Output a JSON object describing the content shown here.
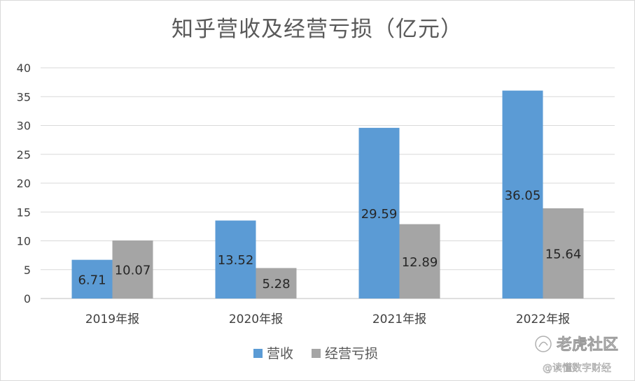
{
  "chart_data": {
    "type": "bar",
    "title": "知乎营收及经营亏损（亿元）",
    "categories": [
      "2019年报",
      "2020年报",
      "2021年报",
      "2022年报"
    ],
    "series": [
      {
        "name": "营收",
        "color": "#5b9bd5",
        "values": [
          6.71,
          13.52,
          29.59,
          36.05
        ]
      },
      {
        "name": "经营亏损",
        "color": "#a5a5a5",
        "values": [
          10.07,
          5.28,
          12.89,
          15.64
        ]
      }
    ],
    "ylim": [
      0,
      40
    ],
    "yticks": [
      0,
      5,
      10,
      15,
      20,
      25,
      30,
      35,
      40
    ],
    "grid": true,
    "legend_position": "bottom",
    "data_labels": true
  },
  "watermark": {
    "line1": "老虎社区",
    "line2": "@读懂数字财经"
  }
}
